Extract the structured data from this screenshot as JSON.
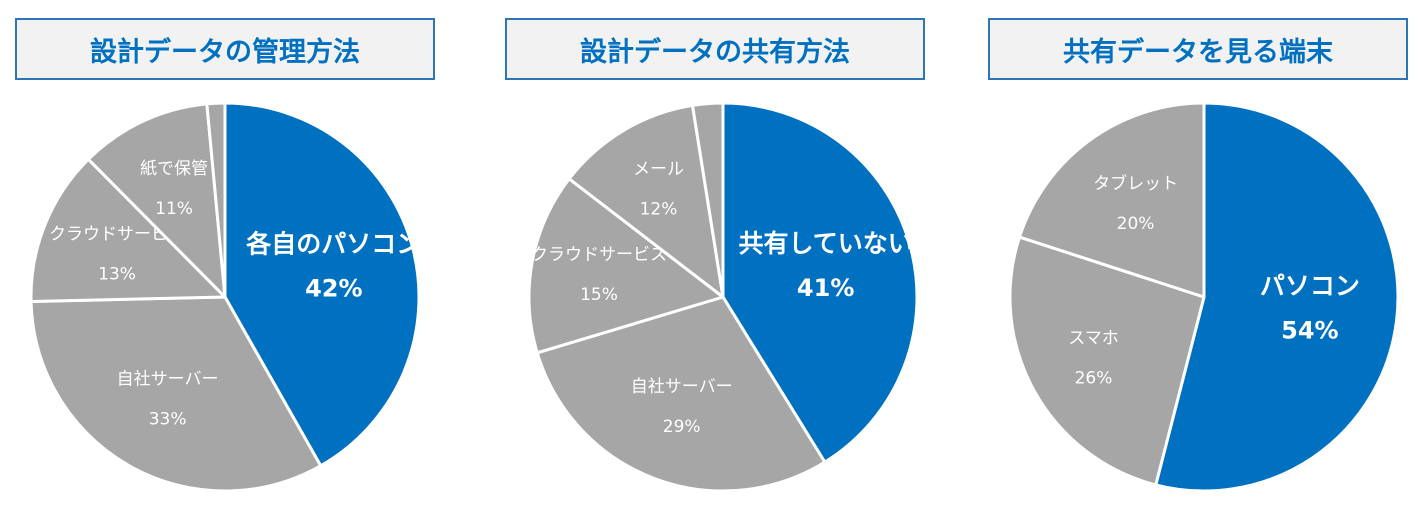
{
  "colors": {
    "highlight": "#0070c0",
    "other": "#a6a6a6",
    "title_border": "#2e75b6",
    "title_bg": "#f2f2f2",
    "separator": "#ffffff"
  },
  "chart_data": [
    {
      "type": "pie",
      "title": "設計データの管理方法",
      "slices": [
        {
          "label": "各自のパソコン",
          "value_label": "42%",
          "value": 42,
          "highlight": true
        },
        {
          "label": "自社サーバー",
          "value_label": "33%",
          "value": 33,
          "highlight": false
        },
        {
          "label": "クラウドサービス",
          "value_label": "13%",
          "value": 13,
          "highlight": false
        },
        {
          "label": "紙で保管",
          "value_label": "11%",
          "value": 11,
          "highlight": false
        },
        {
          "label": "",
          "value_label": "",
          "value": 1.5,
          "highlight": false
        }
      ]
    },
    {
      "type": "pie",
      "title": "設計データの共有方法",
      "slices": [
        {
          "label": "共有していない",
          "value_label": "41%",
          "value": 41,
          "highlight": true
        },
        {
          "label": "自社サーバー",
          "value_label": "29%",
          "value": 29,
          "highlight": false
        },
        {
          "label": "クラウドサービス",
          "value_label": "15%",
          "value": 15,
          "highlight": false
        },
        {
          "label": "メール",
          "value_label": "12%",
          "value": 12,
          "highlight": false
        },
        {
          "label": "",
          "value_label": "",
          "value": 2.5,
          "highlight": false
        }
      ]
    },
    {
      "type": "pie",
      "title": "共有データを見る端末",
      "slices": [
        {
          "label": "パソコン",
          "value_label": "54%",
          "value": 54,
          "highlight": true
        },
        {
          "label": "スマホ",
          "value_label": "26%",
          "value": 26,
          "highlight": false
        },
        {
          "label": "タブレット",
          "value_label": "20%",
          "value": 20,
          "highlight": false
        }
      ]
    }
  ]
}
